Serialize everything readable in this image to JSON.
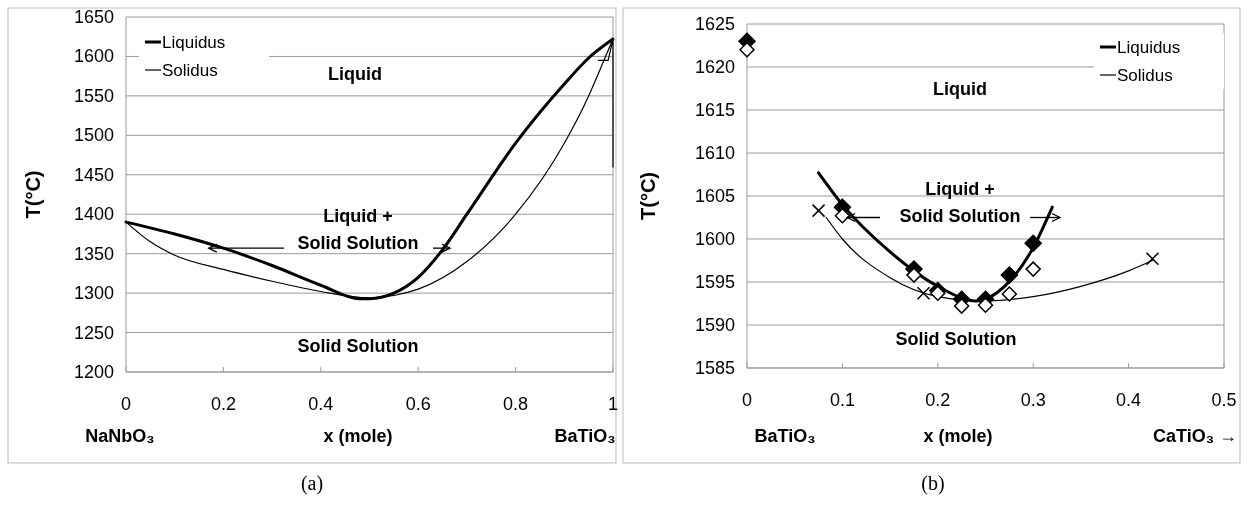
{
  "chart_data": [
    {
      "type": "line",
      "title": "(a)",
      "xlabel": "x (mole)",
      "ylabel": "T(°C)",
      "xlim": [
        0,
        1
      ],
      "ylim": [
        1200,
        1650
      ],
      "xticks": [
        0,
        0.2,
        0.4,
        0.6,
        0.8,
        1
      ],
      "yticks": [
        1200,
        1250,
        1300,
        1350,
        1400,
        1450,
        1500,
        1550,
        1600,
        1650
      ],
      "grid": "y",
      "legend": "top left",
      "annotations": [
        "Liquid",
        {
          "text": "Liquid +\nSolid Solution",
          "x": 0.17,
          "y": 1357
        },
        "Solid Solution",
        "NaNbO₃",
        "BaTiO₃"
      ],
      "series": [
        {
          "name": "Liquidus",
          "color": "#000000",
          "x": [
            0,
            0.1,
            0.2,
            0.3,
            0.4,
            0.48,
            0.5,
            0.55,
            0.6,
            0.65,
            0.7,
            0.8,
            0.9,
            0.95,
            1
          ],
          "values": [
            1390,
            1375,
            1357,
            1335,
            1310,
            1293,
            1293,
            1300,
            1320,
            1355,
            1400,
            1490,
            1565,
            1598,
            1622
          ]
        },
        {
          "name": "Solidus",
          "color": "#000000",
          "x": [
            0,
            0.05,
            0.1,
            0.2,
            0.3,
            0.4,
            0.5,
            0.55,
            0.6,
            0.7,
            0.8,
            0.9,
            0.95,
            0.98,
            1
          ],
          "values": [
            1390,
            1365,
            1348,
            1330,
            1315,
            1302,
            1294,
            1297,
            1305,
            1340,
            1400,
            1490,
            1550,
            1593,
            1622
          ]
        },
        {
          "color": "#000000",
          "x": [
            0.97,
            0.99,
            1,
            1
          ],
          "values": [
            1595,
            1595,
            1622,
            1460
          ]
        }
      ]
    },
    {
      "type": "line",
      "title": "(b)",
      "xlabel": "x (mole)",
      "ylabel": "T(°C)",
      "xlim": [
        0,
        0.5
      ],
      "ylim": [
        1585,
        1625
      ],
      "xticks": [
        0,
        0.1,
        0.2,
        0.3,
        0.4,
        0.5
      ],
      "yticks": [
        1585,
        1590,
        1595,
        1600,
        1605,
        1610,
        1615,
        1620,
        1625
      ],
      "grid": "y",
      "legend": "top right",
      "annotations": [
        "Liquid",
        {
          "text": "Liquid +\nSolid Solution",
          "x": 0.105,
          "y": 1602.5
        },
        "Solid Solution",
        "BaTiO₃",
        "CaTiO₃ →"
      ],
      "series": [
        {
          "name": "Liquidus",
          "color": "#000000",
          "x": [
            0.075,
            0.1,
            0.15,
            0.2,
            0.24,
            0.27,
            0.3,
            0.32
          ],
          "values": [
            1607.7,
            1604,
            1598.5,
            1594.5,
            1592.8,
            1594.5,
            1599,
            1603.7
          ]
        },
        {
          "name": "Solidus",
          "color": "#000000",
          "x": [
            0.083,
            0.1,
            0.15,
            0.2,
            0.25,
            0.3,
            0.35,
            0.4,
            0.425
          ],
          "values": [
            1602.5,
            1600,
            1595.5,
            1593.3,
            1592.8,
            1593.3,
            1594.5,
            1596.3,
            1597.5
          ]
        },
        {
          "type": "scatter",
          "marker": "diamond",
          "color": "#000000",
          "x": [
            0,
            0.1,
            0.175,
            0.2,
            0.225,
            0.25,
            0.275,
            0.3
          ],
          "values": [
            1623,
            1603.7,
            1596.5,
            1594,
            1593,
            1593,
            1595.8,
            1599.5
          ]
        },
        {
          "type": "scatter",
          "marker": "diamond",
          "color": "#ffffff",
          "x": [
            0,
            0.1,
            0.175,
            0.2,
            0.225,
            0.25,
            0.275,
            0.3
          ],
          "values": [
            1622,
            1602.7,
            1595.8,
            1593.7,
            1592.2,
            1592.3,
            1593.6,
            1596.5
          ]
        },
        {
          "type": "scatter",
          "marker": "cross",
          "color": "#000000",
          "x": [
            0.075,
            0.185,
            0.425
          ],
          "values": [
            1603.3,
            1593.7,
            1597.7
          ]
        }
      ]
    }
  ]
}
